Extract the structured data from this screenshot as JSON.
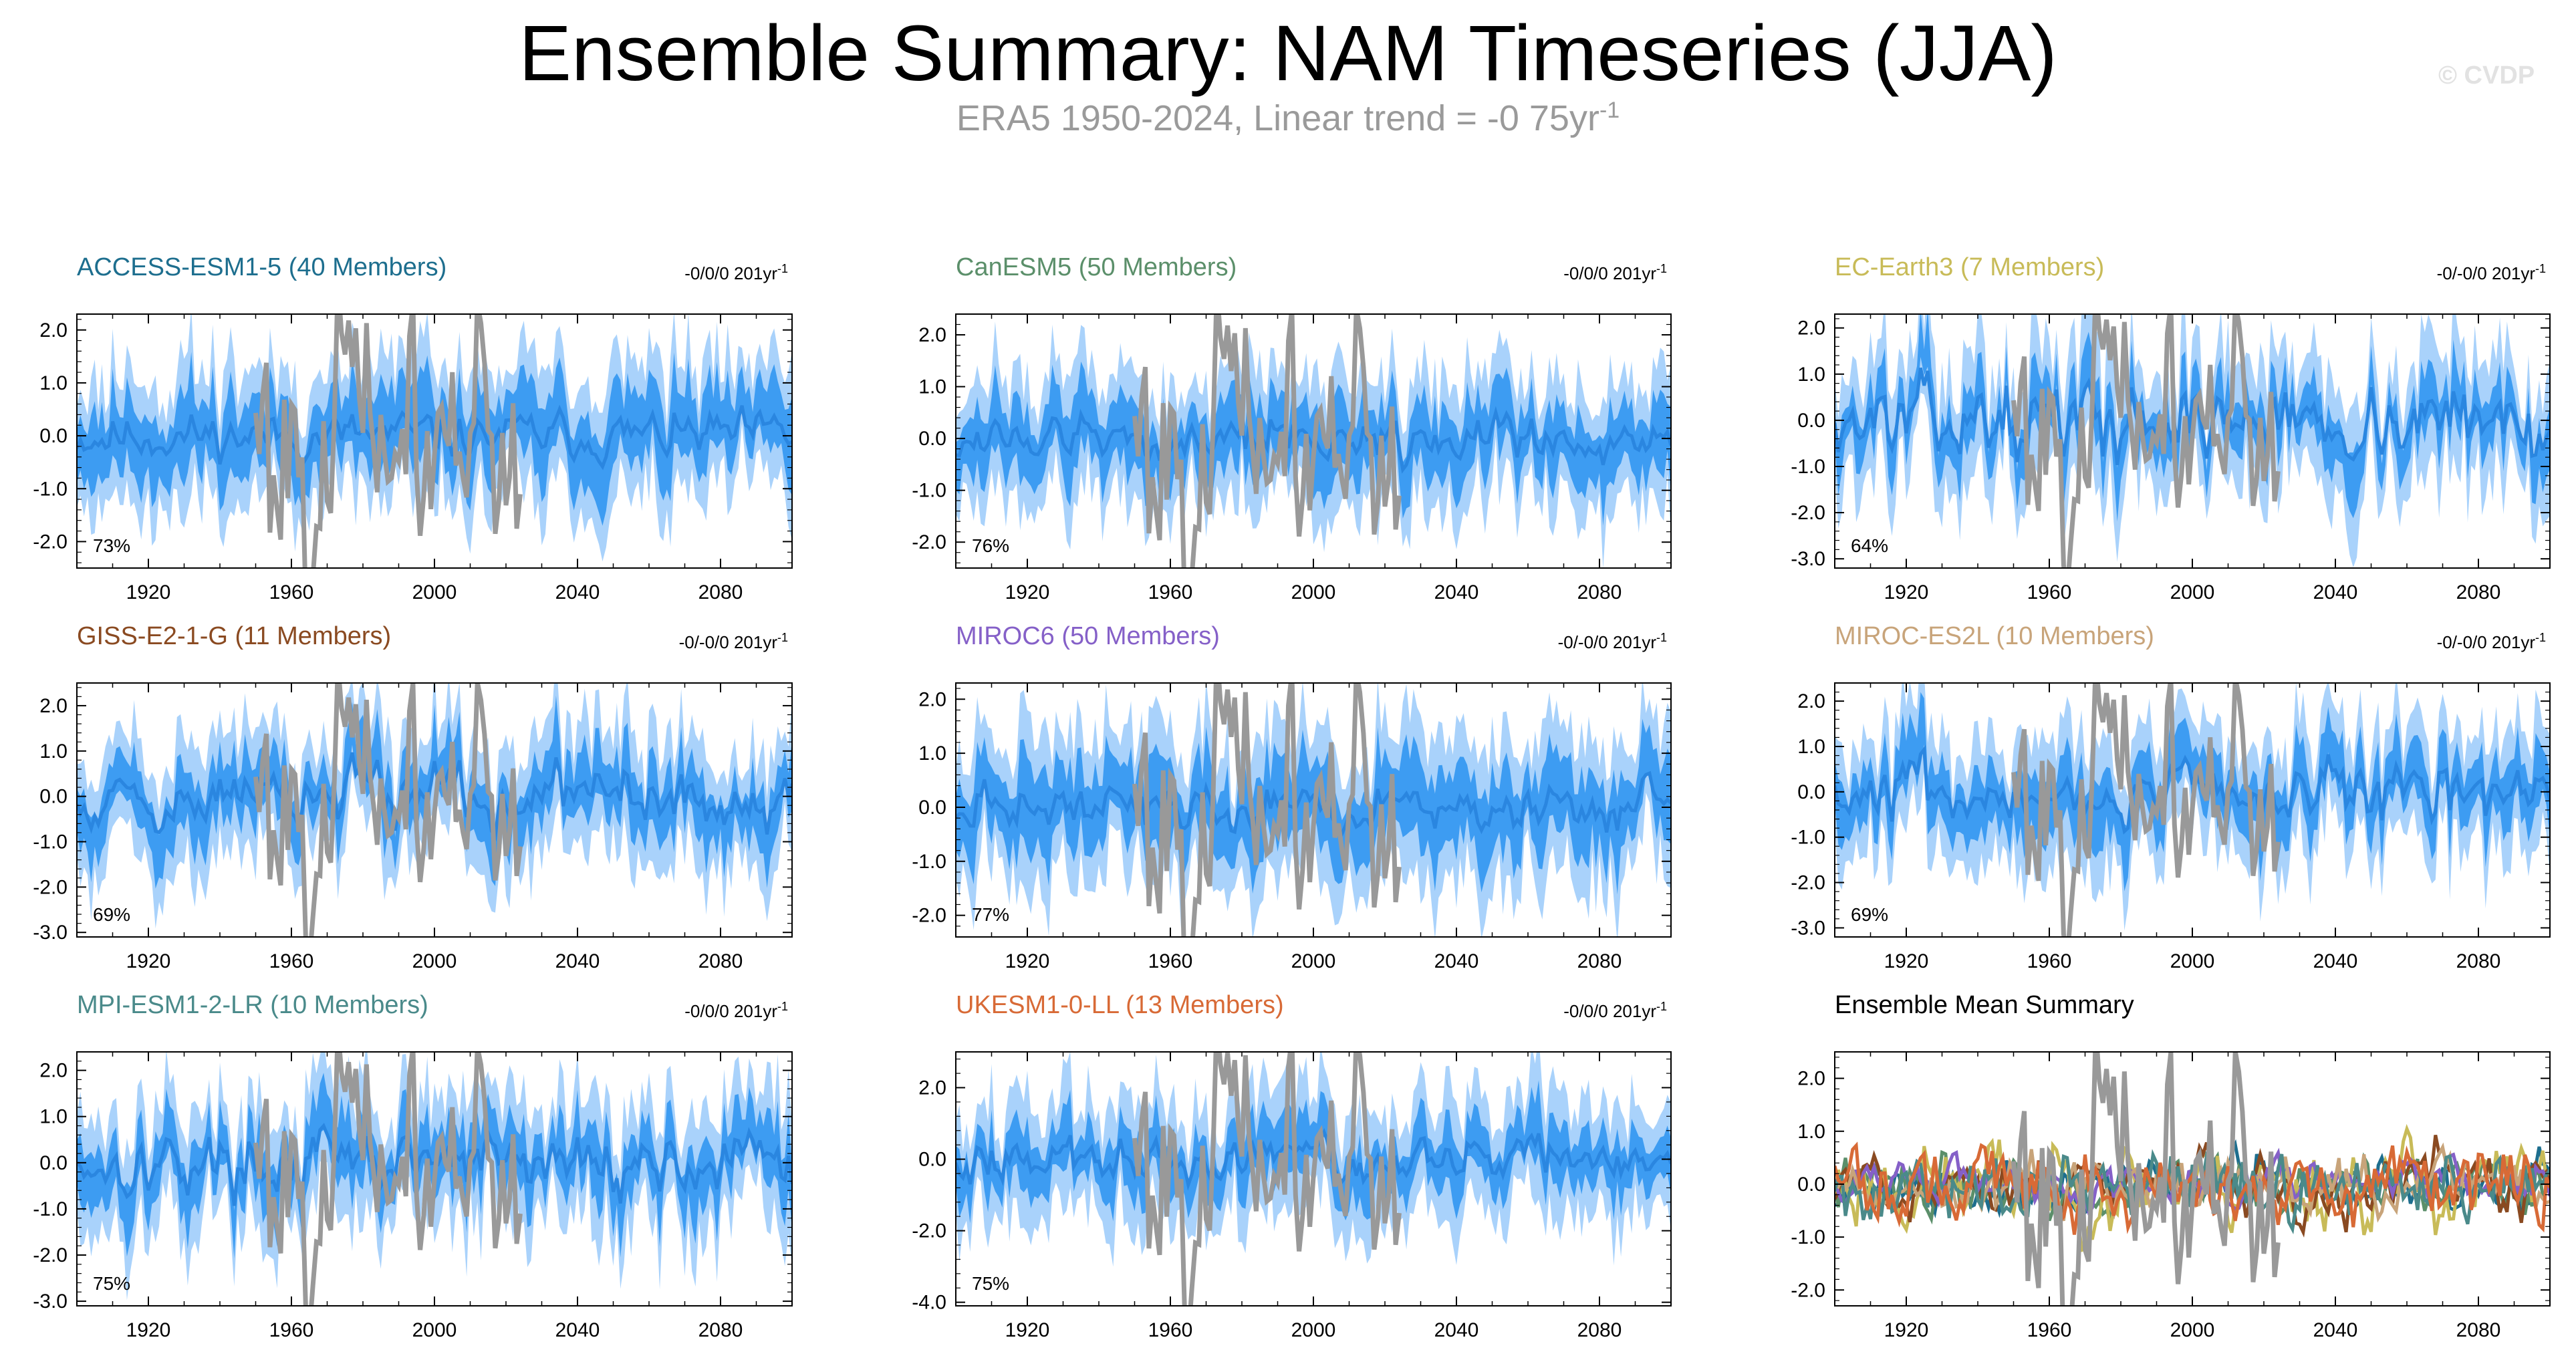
{
  "title": "Ensemble Summary: NAM Timeseries (JJA)",
  "subtitle": {
    "text": "ERA5 1950-2024, Linear trend = -0 75yr",
    "superscript": "-1"
  },
  "watermark": "© CVDP",
  "colors": {
    "outer_band": "#a9d2fb",
    "inner_band": "#3d9cf2",
    "ensemble_mean": "#2a86e0",
    "observations": "#999999"
  },
  "chart_data": [
    {
      "type": "line",
      "title": "ACCESS-ESM1-5 (40 Members)",
      "title_color": "#1d6e8e",
      "trend": "-0/0/0 201yr",
      "trend_sup": "-1",
      "percent": "73%",
      "yticks": [
        "2.0",
        "1.0",
        "0.0",
        "-1.0",
        "-2.0"
      ],
      "ytick_values": [
        2,
        1,
        0,
        -1,
        -2
      ],
      "ylim": [
        -2.5,
        2.3
      ],
      "xticks": [
        "1920",
        "1960",
        "2000",
        "2040",
        "2080"
      ],
      "xtick_values": [
        1920,
        1960,
        2000,
        2040,
        2080
      ],
      "xlim": [
        1900,
        2100
      ],
      "series": [
        {
          "name": "ensemble",
          "x_range": [
            1900,
            2100
          ],
          "amp": 0.3,
          "inner": 0.65,
          "outer": 1.25,
          "seed": 11
        },
        {
          "name": "ERA5",
          "x_range": [
            1950,
            2024
          ],
          "amp": 1.1,
          "trend": 0.0,
          "seed": 101
        }
      ]
    },
    {
      "type": "line",
      "title": "CanESM5 (50 Members)",
      "title_color": "#5b8f6a",
      "trend": "-0/0/0 201yr",
      "trend_sup": "-1",
      "percent": "76%",
      "yticks": [
        "2.0",
        "1.0",
        "0.0",
        "-1.0",
        "-2.0"
      ],
      "ytick_values": [
        2,
        1,
        0,
        -1,
        -2
      ],
      "ylim": [
        -2.5,
        2.4
      ],
      "xticks": [
        "1920",
        "1960",
        "2000",
        "2040",
        "2080"
      ],
      "xtick_values": [
        1920,
        1960,
        2000,
        2040,
        2080
      ],
      "xlim": [
        1900,
        2100
      ],
      "series": [
        {
          "name": "ensemble",
          "x_range": [
            1900,
            2100
          ],
          "amp": 0.3,
          "inner": 0.6,
          "outer": 1.2,
          "seed": 12
        },
        {
          "name": "ERA5",
          "x_range": [
            1950,
            2024
          ],
          "amp": 1.1,
          "trend": 0.0,
          "seed": 101
        }
      ]
    },
    {
      "type": "line",
      "title": "EC-Earth3 (7 Members)",
      "title_color": "#c8bb58",
      "trend": "-0/-0/0 201yr",
      "trend_sup": "-1",
      "percent": "64%",
      "yticks": [
        "2.0",
        "1.0",
        "0.0",
        "-1.0",
        "-2.0",
        "-3.0"
      ],
      "ytick_values": [
        2,
        1,
        0,
        -1,
        -2,
        -3
      ],
      "ylim": [
        -3.2,
        2.3
      ],
      "xticks": [
        "1920",
        "1960",
        "2000",
        "2040",
        "2080"
      ],
      "xtick_values": [
        1920,
        1960,
        2000,
        2040,
        2080
      ],
      "xlim": [
        1900,
        2100
      ],
      "series": [
        {
          "name": "ensemble",
          "x_range": [
            1900,
            2100
          ],
          "amp": 0.55,
          "inner": 0.5,
          "outer": 1.25,
          "seed": 13
        },
        {
          "name": "ERA5",
          "x_range": [
            1950,
            2024
          ],
          "amp": 1.1,
          "trend": 0.0,
          "seed": 101
        }
      ]
    },
    {
      "type": "line",
      "title": "GISS-E2-1-G (11 Members)",
      "title_color": "#8a4a21",
      "trend": "-0/-0/0 201yr",
      "trend_sup": "-1",
      "percent": "69%",
      "yticks": [
        "2.0",
        "1.0",
        "0.0",
        "-1.0",
        "-2.0",
        "-3.0"
      ],
      "ytick_values": [
        2,
        1,
        0,
        -1,
        -2,
        -3
      ],
      "ylim": [
        -3.1,
        2.5
      ],
      "xticks": [
        "1920",
        "1960",
        "2000",
        "2040",
        "2080"
      ],
      "xtick_values": [
        1920,
        1960,
        2000,
        2040,
        2080
      ],
      "xlim": [
        1900,
        2100
      ],
      "series": [
        {
          "name": "ensemble",
          "x_range": [
            1900,
            2100
          ],
          "amp": 0.45,
          "inner": 0.6,
          "outer": 1.3,
          "seed": 14
        },
        {
          "name": "ERA5",
          "x_range": [
            1950,
            2024
          ],
          "amp": 1.1,
          "trend": 0.0,
          "seed": 101
        }
      ]
    },
    {
      "type": "line",
      "title": "MIROC6 (50 Members)",
      "title_color": "#8560c8",
      "trend": "-0/-0/0 201yr",
      "trend_sup": "-1",
      "percent": "77%",
      "yticks": [
        "2.0",
        "1.0",
        "0.0",
        "-1.0",
        "-2.0"
      ],
      "ytick_values": [
        2,
        1,
        0,
        -1,
        -2
      ],
      "ylim": [
        -2.4,
        2.3
      ],
      "xticks": [
        "1920",
        "1960",
        "2000",
        "2040",
        "2080"
      ],
      "xtick_values": [
        1920,
        1960,
        2000,
        2040,
        2080
      ],
      "xlim": [
        1900,
        2100
      ],
      "series": [
        {
          "name": "ensemble",
          "x_range": [
            1900,
            2100
          ],
          "amp": 0.28,
          "inner": 0.65,
          "outer": 1.3,
          "seed": 15
        },
        {
          "name": "ERA5",
          "x_range": [
            1950,
            2024
          ],
          "amp": 1.1,
          "trend": 0.0,
          "seed": 101
        }
      ]
    },
    {
      "type": "line",
      "title": "MIROC-ES2L (10 Members)",
      "title_color": "#c8a47a",
      "trend": "-0/-0/0 201yr",
      "trend_sup": "-1",
      "percent": "69%",
      "yticks": [
        "2.0",
        "1.0",
        "0.0",
        "-1.0",
        "-2.0",
        "-3.0"
      ],
      "ytick_values": [
        2,
        1,
        0,
        -1,
        -2,
        -3
      ],
      "ylim": [
        -3.2,
        2.4
      ],
      "xticks": [
        "1920",
        "1960",
        "2000",
        "2040",
        "2080"
      ],
      "xtick_values": [
        1920,
        1960,
        2000,
        2040,
        2080
      ],
      "xlim": [
        1900,
        2100
      ],
      "series": [
        {
          "name": "ensemble",
          "x_range": [
            1900,
            2100
          ],
          "amp": 0.45,
          "inner": 0.6,
          "outer": 1.3,
          "seed": 16
        },
        {
          "name": "ERA5",
          "x_range": [
            1950,
            2024
          ],
          "amp": 1.1,
          "trend": 0.0,
          "seed": 101
        }
      ]
    },
    {
      "type": "line",
      "title": "MPI-ESM1-2-LR (10 Members)",
      "title_color": "#4a8a8a",
      "trend": "-0/0/0 201yr",
      "trend_sup": "-1",
      "percent": "75%",
      "yticks": [
        "2.0",
        "1.0",
        "0.0",
        "-1.0",
        "-2.0",
        "-3.0"
      ],
      "ytick_values": [
        2,
        1,
        0,
        -1,
        -2,
        -3
      ],
      "ylim": [
        -3.1,
        2.4
      ],
      "xticks": [
        "1920",
        "1960",
        "2000",
        "2040",
        "2080"
      ],
      "xtick_values": [
        1920,
        1960,
        2000,
        2040,
        2080
      ],
      "xlim": [
        1900,
        2100
      ],
      "series": [
        {
          "name": "ensemble",
          "x_range": [
            1900,
            2100
          ],
          "amp": 0.45,
          "inner": 0.6,
          "outer": 1.3,
          "seed": 17
        },
        {
          "name": "ERA5",
          "x_range": [
            1950,
            2024
          ],
          "amp": 1.1,
          "trend": 0.0,
          "seed": 101
        }
      ]
    },
    {
      "type": "line",
      "title": "UKESM1-0-LL (13 Members)",
      "title_color": "#d86a36",
      "trend": "-0/0/0 201yr",
      "trend_sup": "-1",
      "percent": "75%",
      "yticks": [
        "2.0",
        "0.0",
        "-2.0",
        "-4.0"
      ],
      "ytick_values": [
        2,
        0,
        -2,
        -4
      ],
      "ylim": [
        -4.1,
        3.0
      ],
      "xticks": [
        "1920",
        "1960",
        "2000",
        "2040",
        "2080"
      ],
      "xtick_values": [
        1920,
        1960,
        2000,
        2040,
        2080
      ],
      "xlim": [
        1900,
        2100
      ],
      "series": [
        {
          "name": "ensemble",
          "x_range": [
            1900,
            2100
          ],
          "amp": 0.4,
          "inner": 0.7,
          "outer": 1.6,
          "seed": 18
        },
        {
          "name": "ERA5",
          "x_range": [
            1950,
            2024
          ],
          "amp": 1.5,
          "trend": 0.0,
          "seed": 101
        }
      ]
    },
    {
      "type": "line",
      "title": "Ensemble Mean Summary",
      "title_color": "#000000",
      "trend": "",
      "trend_sup": "",
      "percent": "",
      "yticks": [
        "2.0",
        "1.0",
        "0.0",
        "-1.0",
        "-2.0"
      ],
      "ytick_values": [
        2,
        1,
        0,
        -1,
        -2
      ],
      "ylim": [
        -2.3,
        2.5
      ],
      "xticks": [
        "1920",
        "1960",
        "2000",
        "2040",
        "2080"
      ],
      "xtick_values": [
        1920,
        1960,
        2000,
        2040,
        2080
      ],
      "xlim": [
        1900,
        2100
      ],
      "series": [
        {
          "name": "ACCESS-ESM1-5",
          "color": "#1d6e8e",
          "x_range": [
            1900,
            2100
          ],
          "amp": 0.22,
          "seed": 21
        },
        {
          "name": "CanESM5",
          "color": "#5b8f6a",
          "x_range": [
            1900,
            2100
          ],
          "amp": 0.22,
          "seed": 22
        },
        {
          "name": "EC-Earth3",
          "color": "#c8bb58",
          "x_range": [
            1900,
            2100
          ],
          "amp": 0.35,
          "seed": 23
        },
        {
          "name": "GISS-E2-1-G",
          "color": "#8a4a21",
          "x_range": [
            1900,
            2100
          ],
          "amp": 0.25,
          "seed": 24
        },
        {
          "name": "MIROC6",
          "color": "#8560c8",
          "x_range": [
            1900,
            2100
          ],
          "amp": 0.18,
          "seed": 25
        },
        {
          "name": "MIROC-ES2L",
          "color": "#c8a47a",
          "x_range": [
            1900,
            2100
          ],
          "amp": 0.25,
          "seed": 26
        },
        {
          "name": "MPI-ESM1-2-LR",
          "color": "#4a8a8a",
          "x_range": [
            1900,
            2100
          ],
          "amp": 0.3,
          "seed": 27
        },
        {
          "name": "UKESM1-0-LL",
          "color": "#d86a36",
          "x_range": [
            1900,
            2100
          ],
          "amp": 0.3,
          "seed": 28
        },
        {
          "name": "ERA5",
          "color": "#999999",
          "x_range": [
            1950,
            2024
          ],
          "amp": 1.1,
          "seed": 101
        }
      ]
    }
  ]
}
